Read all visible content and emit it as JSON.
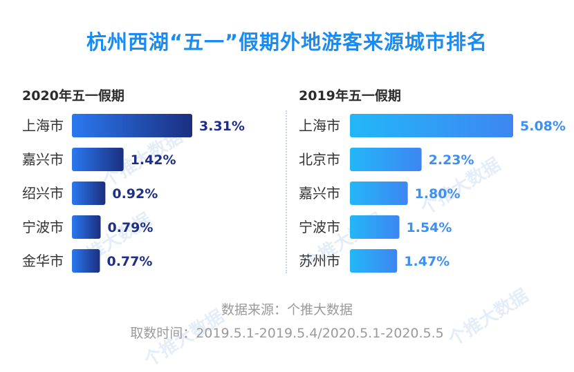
{
  "title": "杭州西湖“五一”假期外地游客来源城市排名",
  "colors": {
    "title": "#1a8bf2",
    "left_bar_start": "#2a78f0",
    "left_bar_end": "#1b2f80",
    "left_label": "#1d2f86",
    "right_bar_start": "#23b7f7",
    "right_bar_end": "#3d86f2",
    "right_label": "#3d8ff2",
    "category": "#333333"
  },
  "watermark": "个推大数据",
  "footer": {
    "source": "数据来源：个推大数据",
    "period": "取数时间：2019.5.1-2019.5.4/2020.5.1-2020.5.5"
  },
  "chart_data": [
    {
      "type": "bar",
      "orientation": "horizontal",
      "title": "2020年五一假期",
      "categories": [
        "上海市",
        "嘉兴市",
        "绍兴市",
        "宁波市",
        "金华市"
      ],
      "values": [
        3.31,
        1.42,
        0.92,
        0.79,
        0.77
      ],
      "labels": [
        "3.31%",
        "1.42%",
        "0.92%",
        "0.79%",
        "0.77%"
      ],
      "unit": "%"
    },
    {
      "type": "bar",
      "orientation": "horizontal",
      "title": "2019年五一假期",
      "categories": [
        "上海市",
        "北京市",
        "嘉兴市",
        "宁波市",
        "苏州市"
      ],
      "values": [
        5.08,
        2.23,
        1.8,
        1.54,
        1.47
      ],
      "labels": [
        "5.08%",
        "2.23%",
        "1.80%",
        "1.54%",
        "1.47%"
      ],
      "unit": "%"
    }
  ]
}
